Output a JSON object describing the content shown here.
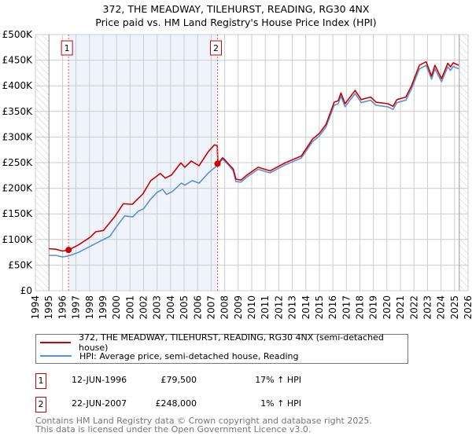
{
  "title": "372, THE MEADWAY, TILEHURST, READING, RG30 4NX",
  "subtitle": "Price paid vs. HM Land Registry's House Price Index (HPI)",
  "chart_data": {
    "type": "line",
    "xlim": [
      1994,
      2026
    ],
    "ylim": [
      0,
      500000
    ],
    "x_ticks": [
      "1994",
      "1995",
      "1996",
      "1997",
      "1998",
      "1999",
      "2000",
      "2001",
      "2002",
      "2003",
      "2004",
      "2005",
      "2006",
      "2007",
      "2008",
      "2009",
      "2010",
      "2011",
      "2012",
      "2013",
      "2014",
      "2015",
      "2016",
      "2017",
      "2018",
      "2019",
      "2020",
      "2021",
      "2022",
      "2023",
      "2024",
      "2025",
      "2026"
    ],
    "y_ticks": [
      {
        "value": 0,
        "label": "£0"
      },
      {
        "value": 50000,
        "label": "£50K"
      },
      {
        "value": 100000,
        "label": "£100K"
      },
      {
        "value": 150000,
        "label": "£150K"
      },
      {
        "value": 200000,
        "label": "£200K"
      },
      {
        "value": 250000,
        "label": "£250K"
      },
      {
        "value": 300000,
        "label": "£300K"
      },
      {
        "value": 350000,
        "label": "£350K"
      },
      {
        "value": 400000,
        "label": "£400K"
      },
      {
        "value": 450000,
        "label": "£450K"
      },
      {
        "value": 500000,
        "label": "£500K"
      }
    ],
    "grid": true,
    "data_range": [
      1995,
      2025.35
    ],
    "series": [
      {
        "name": "372, THE MEADWAY, TILEHURST, READING, RG30 4NX (semi-detached house)",
        "color": "#cc0000",
        "x": [
          1995.0,
          1995.5,
          1996.0,
          1996.45,
          1997.2,
          1998.07,
          1998.46,
          1999.04,
          1999.9,
          2000.5,
          2001.17,
          2001.95,
          2002.53,
          2003.24,
          2003.6,
          2004.07,
          2004.76,
          2005.05,
          2005.53,
          2006.1,
          2006.8,
          2007.24,
          2007.45,
          2007.5,
          2007.85,
          2008.3,
          2008.63,
          2008.83,
          2009.2,
          2009.6,
          2010.47,
          2011.35,
          2012.5,
          2013.67,
          2014.5,
          2015.0,
          2015.5,
          2016.1,
          2016.4,
          2016.6,
          2016.9,
          2017.65,
          2018.1,
          2018.8,
          2019.2,
          2020.06,
          2020.45,
          2020.74,
          2021.4,
          2021.8,
          2022.4,
          2022.9,
          2023.3,
          2023.55,
          2024.04,
          2024.5,
          2024.7,
          2024.9,
          2025.3
        ],
        "y": [
          82000,
          81000,
          77500,
          79500,
          89500,
          104800,
          115000,
          117600,
          145700,
          169800,
          168700,
          189000,
          214700,
          229000,
          219800,
          226000,
          249500,
          241000,
          253000,
          244000,
          272000,
          284800,
          283000,
          248000,
          259700,
          247000,
          237700,
          217800,
          216000,
          225000,
          241000,
          234000,
          250000,
          263000,
          296000,
          307000,
          325000,
          368000,
          371000,
          386000,
          365000,
          391000,
          373000,
          378000,
          368000,
          365000,
          360000,
          373000,
          378000,
          399000,
          440000,
          447000,
          419000,
          440000,
          414000,
          444000,
          437000,
          445000,
          440000
        ]
      },
      {
        "name": "HPI: Average price, semi-detached house, Reading",
        "color": "#5b8fd6",
        "x": [
          1995.0,
          1995.5,
          1996.0,
          1996.45,
          1997.2,
          1998.07,
          1999.04,
          1999.5,
          2000.0,
          2000.6,
          2001.2,
          2001.6,
          2002.0,
          2002.5,
          2003.0,
          2003.4,
          2003.7,
          2004.1,
          2004.8,
          2005.05,
          2005.6,
          2006.1,
          2006.8,
          2007.47,
          2007.85,
          2008.3,
          2008.63,
          2008.83,
          2009.2,
          2009.6,
          2010.47,
          2011.35,
          2012.5,
          2013.67,
          2014.5,
          2015.0,
          2015.5,
          2016.1,
          2016.4,
          2016.6,
          2016.9,
          2017.65,
          2018.1,
          2018.8,
          2019.2,
          2020.06,
          2020.45,
          2020.74,
          2021.4,
          2021.8,
          2022.4,
          2022.9,
          2023.3,
          2023.55,
          2024.04,
          2024.5,
          2024.7,
          2024.9,
          2025.3
        ],
        "y": [
          69000,
          69000,
          66000,
          68000,
          75000,
          87000,
          100000,
          106000,
          125000,
          146000,
          144000,
          155000,
          160000,
          178000,
          192000,
          198000,
          188000,
          193000,
          210000,
          206000,
          215000,
          210000,
          230000,
          245000,
          257000,
          245000,
          234000,
          213000,
          212000,
          221000,
          237000,
          230000,
          246000,
          259000,
          291000,
          302000,
          320000,
          362000,
          365000,
          380000,
          359000,
          385000,
          367000,
          372000,
          362000,
          359000,
          354000,
          367000,
          372000,
          393000,
          433000,
          440000,
          413000,
          433000,
          408000,
          437000,
          430000,
          438000,
          433000
        ]
      }
    ],
    "sales": [
      {
        "label": "1",
        "x": 1996.45,
        "y": 79500
      },
      {
        "label": "2",
        "x": 2007.47,
        "y": 248000
      }
    ]
  },
  "legend": {
    "property": "372, THE MEADWAY, TILEHURST, READING, RG30 4NX (semi-detached house)",
    "hpi": "HPI: Average price, semi-detached house, Reading"
  },
  "sales_table": [
    {
      "num": "1",
      "date": "12-JUN-1996",
      "price": "£79,500",
      "hpi": "17% ↑ HPI"
    },
    {
      "num": "2",
      "date": "22-JUN-2007",
      "price": "£248,000",
      "hpi": "1% ↑ HPI"
    }
  ],
  "footer": {
    "line1": "Contains HM Land Registry data © Crown copyright and database right 2025.",
    "line2": "This data is licensed under the Open Government Licence v3.0."
  }
}
